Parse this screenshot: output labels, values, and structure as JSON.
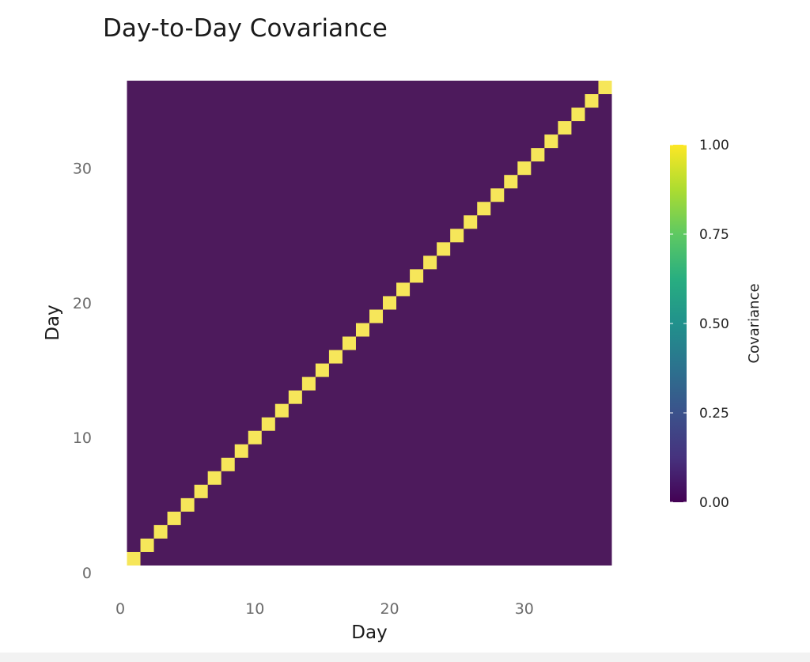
{
  "chart_data": {
    "type": "heatmap",
    "title": "Day-to-Day Covariance",
    "xlabel": "Day",
    "ylabel": "Day",
    "x_range": [
      0.5,
      36.5
    ],
    "y_range": [
      0.5,
      36.5
    ],
    "x_axis_min": 0,
    "y_axis_min": 0,
    "x_ticks": [
      0,
      10,
      20,
      30
    ],
    "y_ticks": [
      0,
      10,
      20,
      30
    ],
    "grid": false,
    "n_days": 36,
    "off_diagonal_value": 0.0,
    "diagonal_value": 1.0,
    "description": "36x36 covariance matrix: 1.0 on the diagonal (day i vs day i), 0.0 elsewhere",
    "colorscale": "viridis",
    "colors": {
      "low": "#4d1a5c",
      "high": "#f6e65a"
    },
    "legend": {
      "title": "Covariance",
      "position": "right",
      "range": [
        0,
        1
      ],
      "ticks": [
        "0.00",
        "0.25",
        "0.50",
        "0.75",
        "1.00"
      ]
    }
  }
}
